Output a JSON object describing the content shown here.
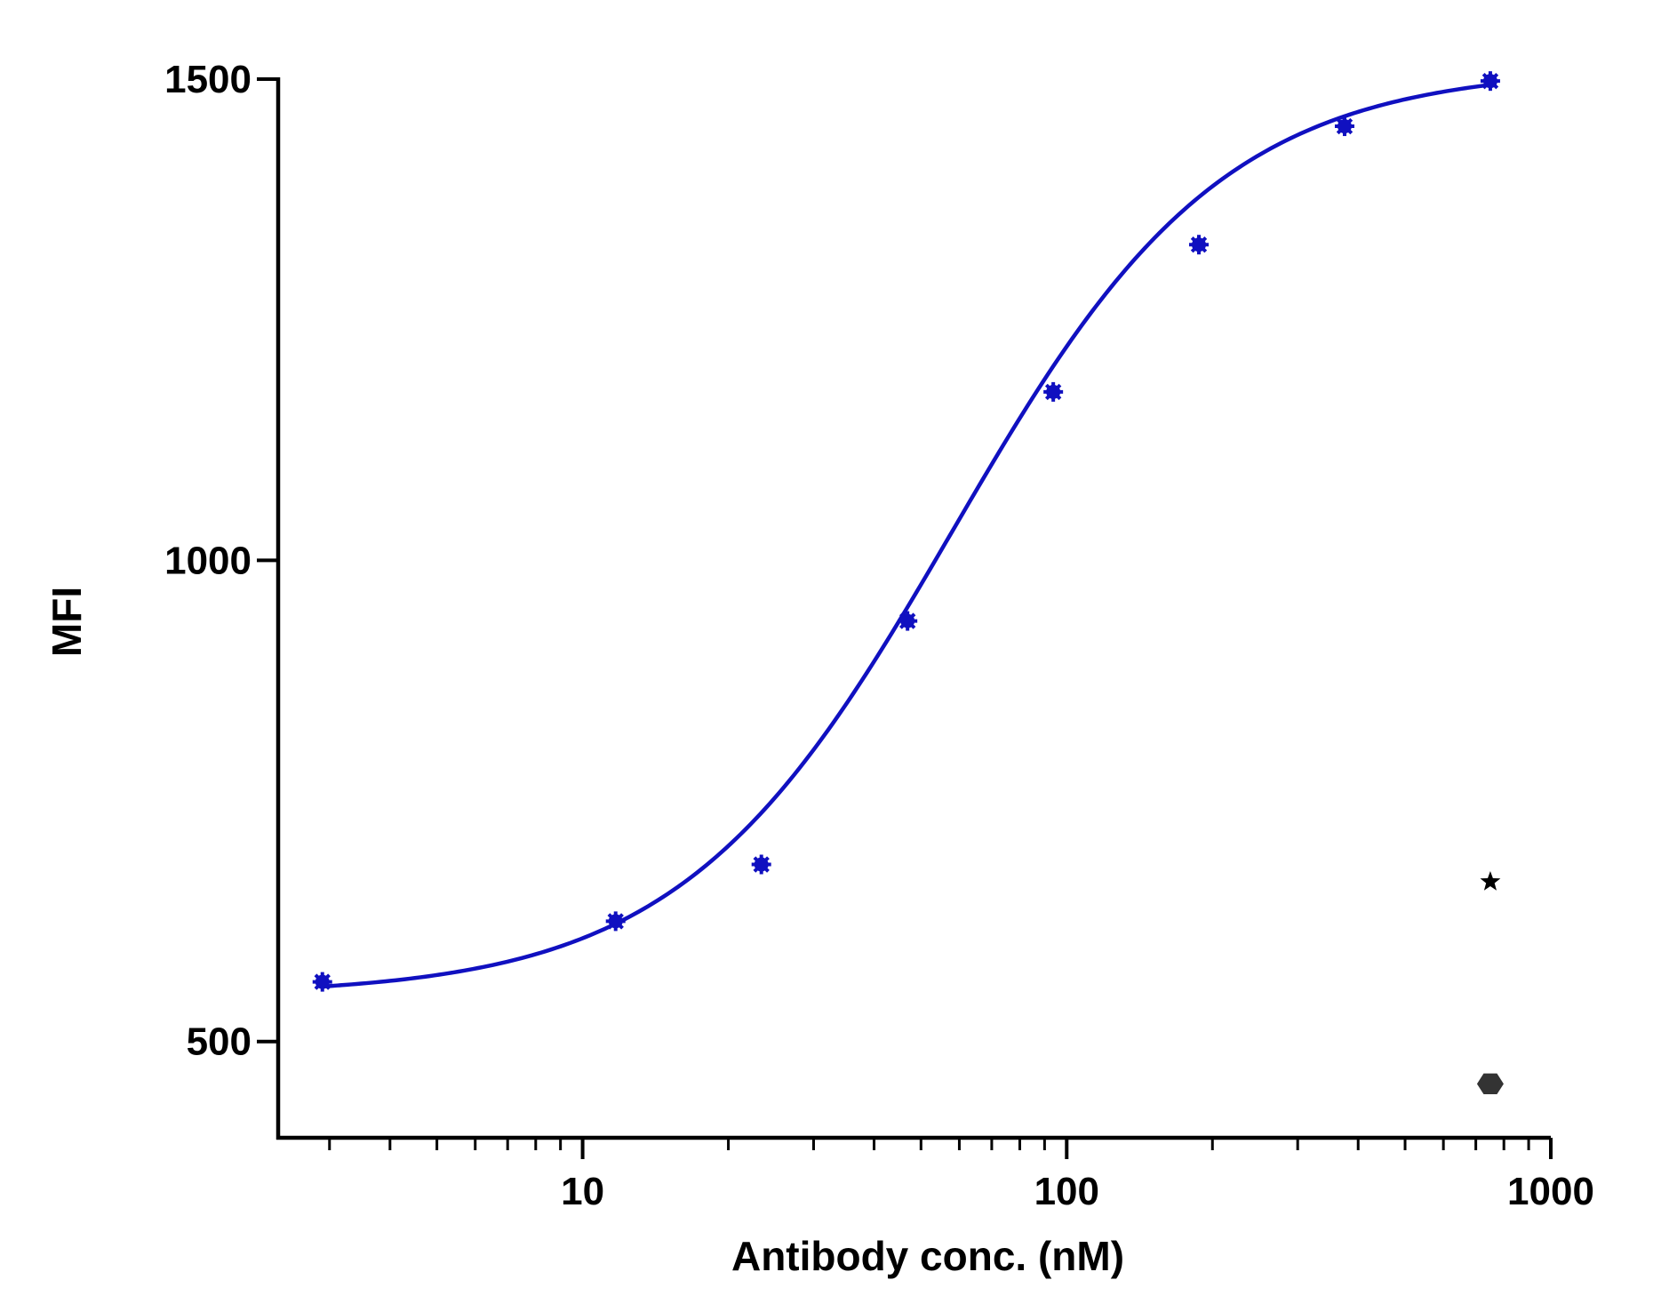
{
  "chart_data": {
    "type": "scatter",
    "xlabel": "Antibody conc. (nM)",
    "ylabel": "MFI",
    "xscale": "log",
    "xlim": [
      2.35,
      1000
    ],
    "ylim": [
      400,
      1500
    ],
    "x_ticks": [
      10,
      100,
      1000
    ],
    "x_tick_labels": [
      "10",
      "100",
      "1000"
    ],
    "y_ticks": [
      500,
      1000,
      1500
    ],
    "y_tick_labels": [
      "500",
      "1000",
      "1500"
    ],
    "grid": false,
    "series": [
      {
        "marker": "asterisk",
        "color": "#1010c0",
        "fit": "sigmoidal",
        "x": [
          2.9,
          11.7,
          23.4,
          46.9,
          93.8,
          187.5,
          375,
          750
        ],
        "y": [
          562,
          625,
          684,
          937,
          1175,
          1328,
          1451,
          1498
        ]
      },
      {
        "marker": "star",
        "color": "#000000",
        "x": [
          750
        ],
        "y": [
          666
        ]
      },
      {
        "marker": "hexagon",
        "color": "#333333",
        "x": [
          750
        ],
        "y": [
          456
        ]
      }
    ],
    "fit_curve": {
      "model": "four-parameter logistic",
      "bottom": 548,
      "top": 1512,
      "ec50": 58,
      "hill": 1.55,
      "x_range": [
        2.9,
        750
      ],
      "color": "#1010c0"
    }
  }
}
